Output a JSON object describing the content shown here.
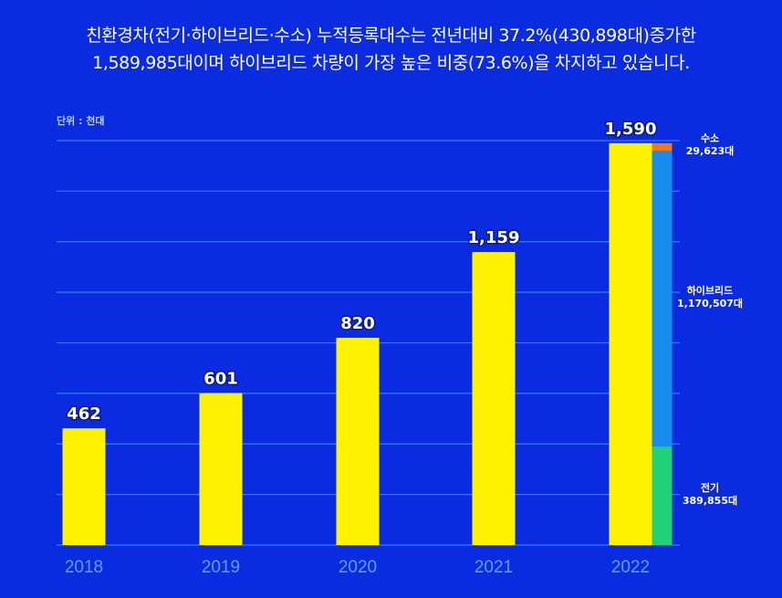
{
  "headline": {
    "line1": "친환경차(전기·하이브리드·수소) 누적등록대수는 전년대비 37.2%(430,898대)증가한",
    "line2": "1,589,985대이며 하이브리드 차량이 가장 높은 비중(73.6%)을 차지하고 있습니다."
  },
  "chart_data": {
    "type": "bar",
    "unit_label": "단위 : 천대",
    "categories": [
      "2018",
      "2019",
      "2020",
      "2021",
      "2022"
    ],
    "values": [
      462,
      601,
      820,
      1159,
      1590
    ],
    "value_labels": [
      "462",
      "601",
      "820",
      "1,159",
      "1,590"
    ],
    "ylim": [
      0,
      1600
    ],
    "grid": true,
    "stacked_breakdown": {
      "category": "2022",
      "segments": [
        {
          "name": "전기",
          "value_label": "389,855대",
          "value": 389.855,
          "color": "#22d07a"
        },
        {
          "name": "하이브리드",
          "value_label": "1,170,507대",
          "value": 1170.507,
          "color": "#1a8cf0"
        },
        {
          "name": "수소",
          "value_label": "29,623대",
          "value": 29.623,
          "color": "#f07a1a"
        }
      ]
    },
    "colors": {
      "bar": "#fff200",
      "grid": "#2f7cff",
      "tick": "#5fa0ff"
    }
  }
}
